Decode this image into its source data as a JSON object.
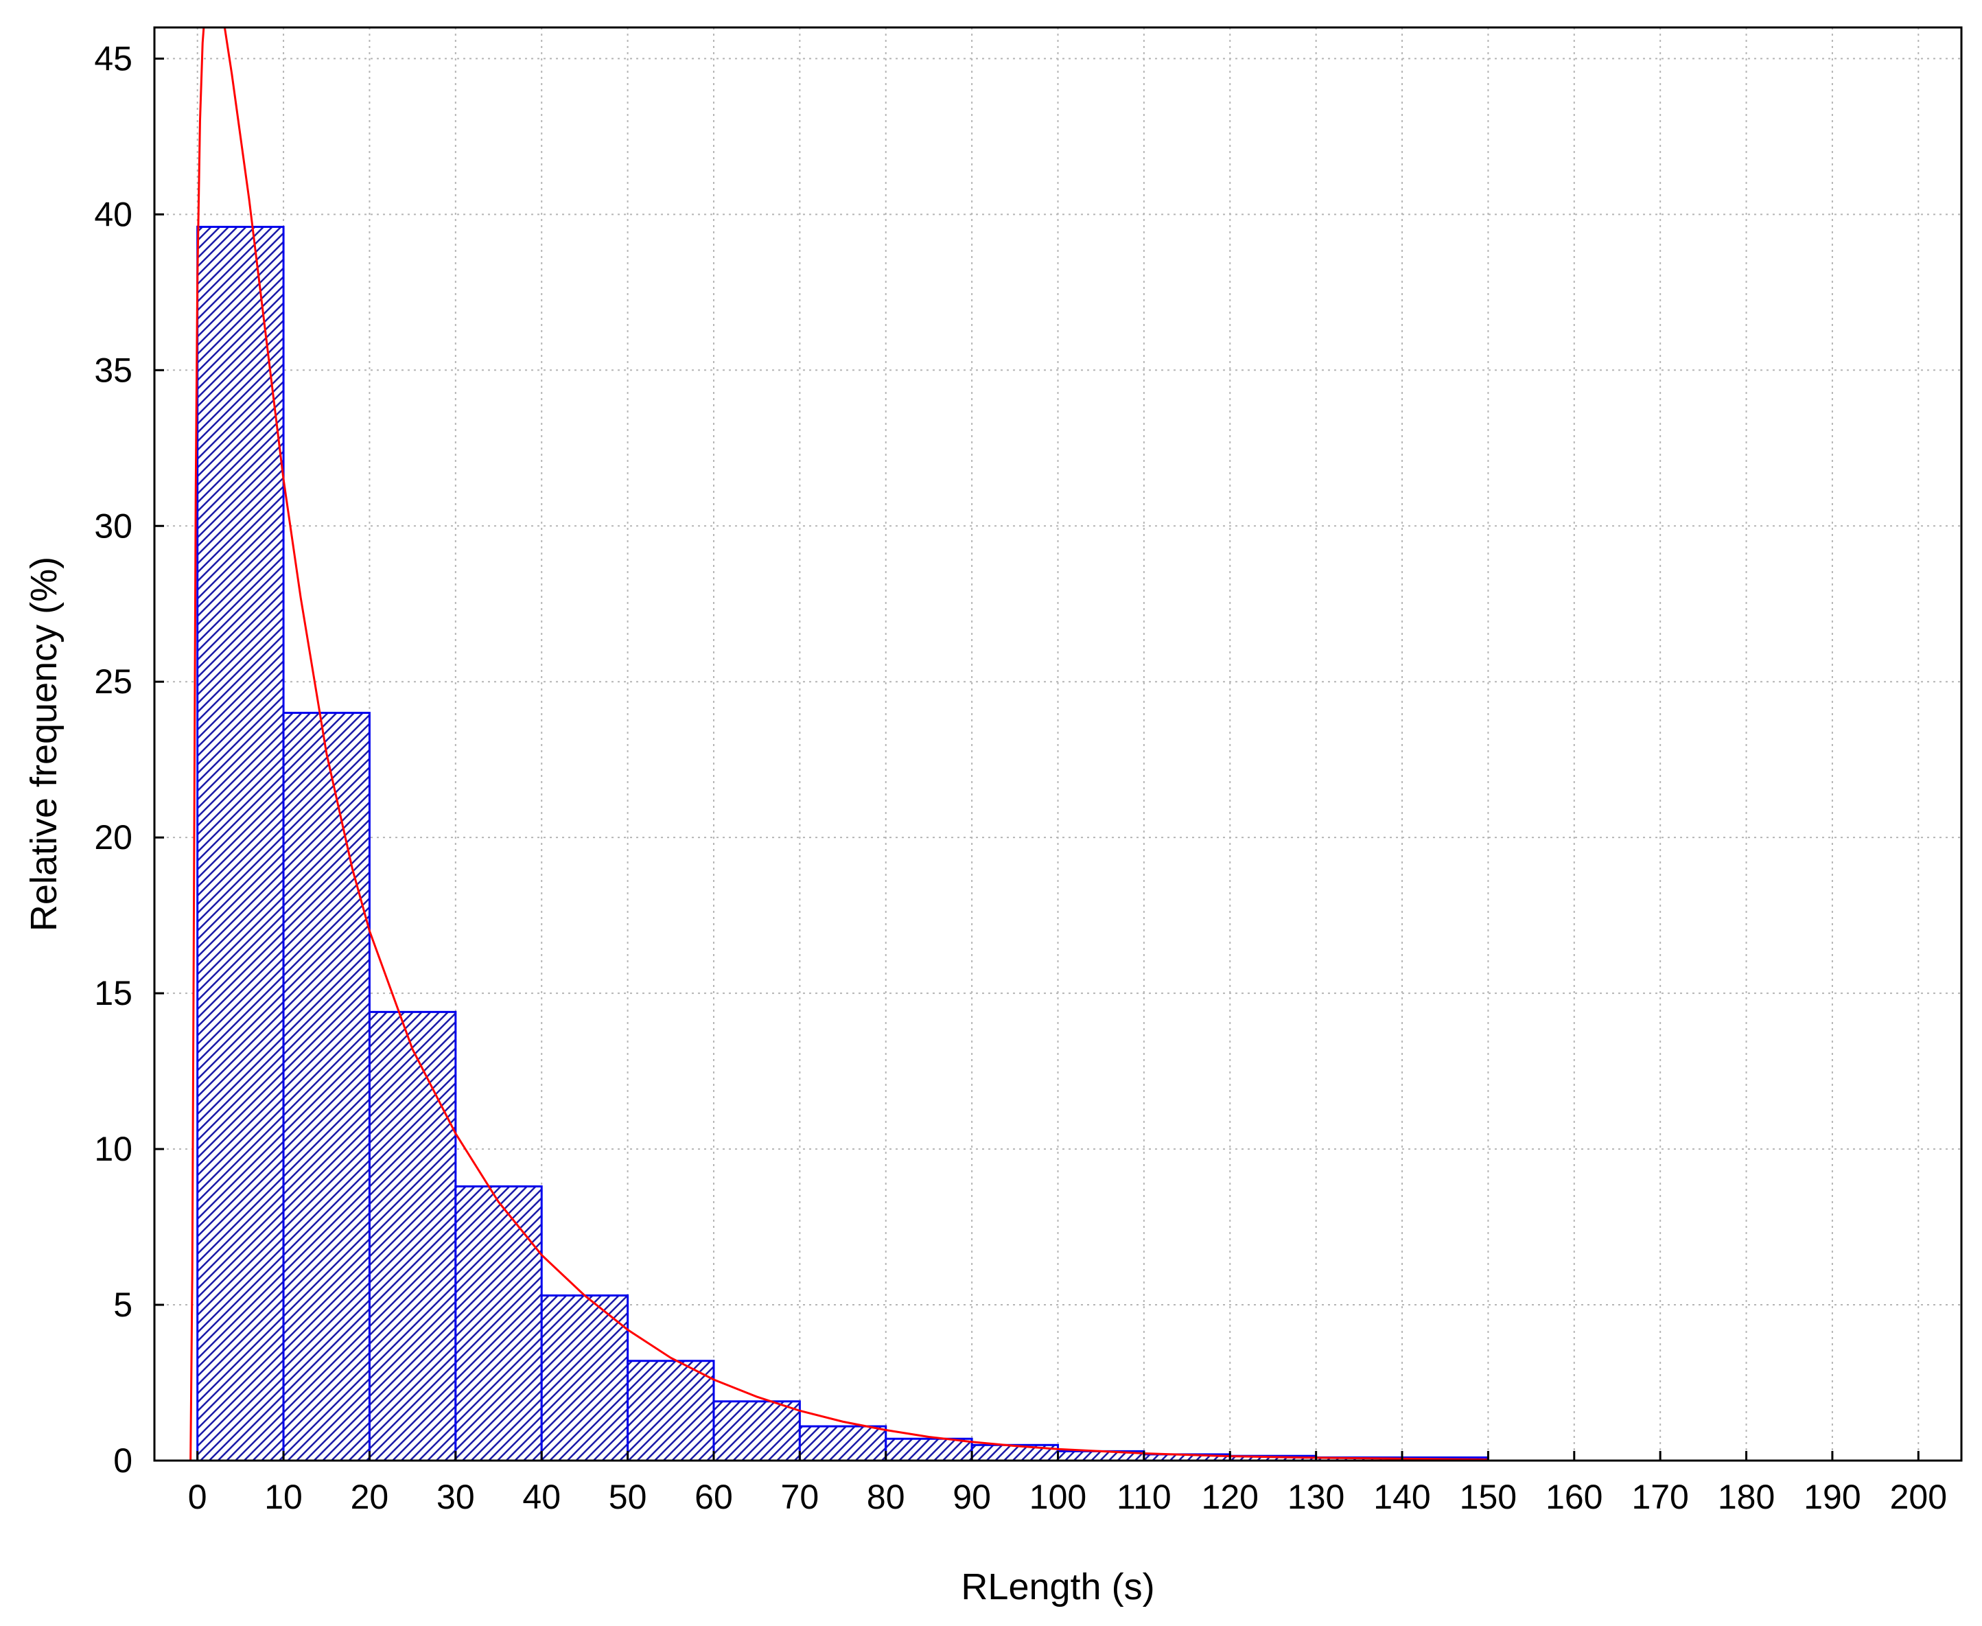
{
  "chart_data": {
    "type": "bar",
    "title": "",
    "xlabel": "RLength (s)",
    "ylabel": "Relative frequency (%)",
    "xlim": [
      -5,
      205
    ],
    "ylim": [
      0,
      46
    ],
    "x_ticks": [
      0,
      10,
      20,
      30,
      40,
      50,
      60,
      70,
      80,
      90,
      100,
      110,
      120,
      130,
      140,
      150,
      160,
      170,
      180,
      190,
      200
    ],
    "y_ticks": [
      0,
      5,
      10,
      15,
      20,
      25,
      30,
      35,
      40,
      45
    ],
    "grid": true,
    "bins": [
      {
        "from": 0,
        "to": 10,
        "value": 39.6
      },
      {
        "from": 10,
        "to": 20,
        "value": 24.0
      },
      {
        "from": 20,
        "to": 30,
        "value": 14.4
      },
      {
        "from": 30,
        "to": 40,
        "value": 8.8
      },
      {
        "from": 40,
        "to": 50,
        "value": 5.3
      },
      {
        "from": 50,
        "to": 60,
        "value": 3.2
      },
      {
        "from": 60,
        "to": 70,
        "value": 1.9
      },
      {
        "from": 70,
        "to": 80,
        "value": 1.1
      },
      {
        "from": 80,
        "to": 90,
        "value": 0.7
      },
      {
        "from": 90,
        "to": 100,
        "value": 0.5
      },
      {
        "from": 100,
        "to": 110,
        "value": 0.3
      },
      {
        "from": 110,
        "to": 120,
        "value": 0.2
      },
      {
        "from": 120,
        "to": 130,
        "value": 0.15
      },
      {
        "from": 130,
        "to": 140,
        "value": 0.1
      },
      {
        "from": 140,
        "to": 150,
        "value": 0.1
      }
    ],
    "fitted_curve": {
      "x": [
        -0.8,
        -0.6,
        -0.4,
        -0.2,
        0,
        0.3,
        0.6,
        1,
        1.5,
        2,
        2.5,
        3,
        4,
        5,
        6,
        8,
        10,
        12,
        15,
        18,
        20,
        25,
        30,
        35,
        40,
        45,
        50,
        55,
        60,
        65,
        70,
        75,
        80,
        85,
        90,
        95,
        100,
        110,
        120,
        130,
        140,
        150
      ],
      "y": [
        0,
        6,
        18.5,
        31,
        38,
        43,
        45.5,
        47,
        47.8,
        47.6,
        47,
        46.3,
        44.5,
        42.5,
        40.5,
        36,
        31.5,
        27.7,
        22.7,
        19.0,
        17.0,
        13.2,
        10.5,
        8.3,
        6.6,
        5.3,
        4.2,
        3.3,
        2.6,
        2.05,
        1.6,
        1.25,
        0.98,
        0.76,
        0.6,
        0.47,
        0.37,
        0.23,
        0.14,
        0.09,
        0.06,
        0.03
      ]
    },
    "colors": {
      "bar_outline": "#0000ee",
      "bar_hatch": "#1a1aa8",
      "curve": "#ff0000",
      "grid": "#b5b5b5",
      "axis": "#000000"
    }
  }
}
